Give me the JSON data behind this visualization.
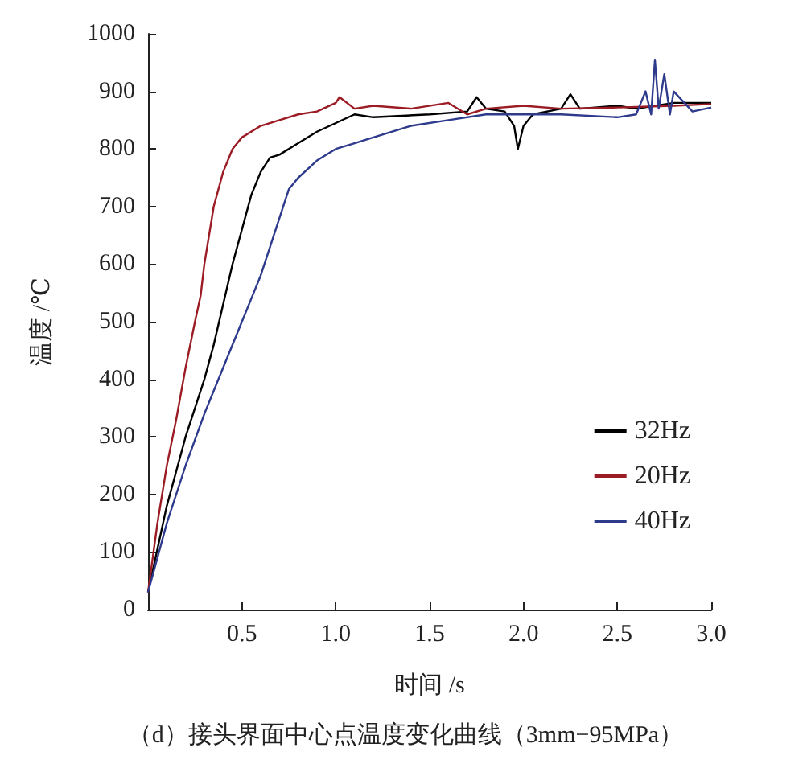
{
  "chart_data": {
    "type": "line",
    "xlabel": "时间 /s",
    "ylabel": "温度 /℃",
    "xlim": [
      0,
      3
    ],
    "xticks": [
      {
        "value": 0.5,
        "label": "0.5"
      },
      {
        "value": 1,
        "label": "1.0"
      },
      {
        "value": 1.5,
        "label": "1.5"
      },
      {
        "value": 2,
        "label": "2.0"
      },
      {
        "value": 2.5,
        "label": "2.5"
      },
      {
        "value": 3,
        "label": "3.0"
      }
    ],
    "ylim": [
      0,
      1000
    ],
    "yticks": [
      0,
      100,
      200,
      300,
      400,
      500,
      600,
      700,
      800,
      900,
      1000
    ],
    "grid": false,
    "legend": "right",
    "marker": "none",
    "line_style": "solid",
    "annotations": [
      "（d）接头界面中心点温度变化曲线（3mm−95MPa）"
    ],
    "series": [
      {
        "name": "32Hz",
        "color": "#000000",
        "x": [
          0,
          0.1,
          0.2,
          0.3,
          0.35,
          0.4,
          0.45,
          0.5,
          0.55,
          0.6,
          0.65,
          0.7,
          0.8,
          0.9,
          1.0,
          1.1,
          1.2,
          1.5,
          1.7,
          1.75,
          1.8,
          1.9,
          1.95,
          1.97,
          2.0,
          2.05,
          2.2,
          2.25,
          2.3,
          2.5,
          2.6,
          2.8,
          3.0
        ],
        "values": [
          30,
          180,
          300,
          400,
          460,
          530,
          600,
          660,
          720,
          760,
          785,
          790,
          810,
          830,
          845,
          860,
          855,
          860,
          865,
          890,
          870,
          865,
          840,
          800,
          840,
          860,
          870,
          895,
          870,
          875,
          870,
          880,
          880
        ]
      },
      {
        "name": "20Hz",
        "color": "#9b1c24",
        "x": [
          0,
          0.05,
          0.1,
          0.15,
          0.2,
          0.25,
          0.28,
          0.3,
          0.32,
          0.35,
          0.4,
          0.45,
          0.5,
          0.6,
          0.7,
          0.8,
          0.9,
          1.0,
          1.02,
          1.1,
          1.2,
          1.4,
          1.6,
          1.7,
          1.8,
          2.0,
          2.2,
          2.5,
          2.8,
          3.0
        ],
        "values": [
          30,
          150,
          250,
          330,
          420,
          500,
          545,
          600,
          640,
          700,
          760,
          800,
          820,
          840,
          850,
          860,
          865,
          880,
          890,
          870,
          875,
          870,
          880,
          860,
          870,
          875,
          870,
          872,
          875,
          878
        ]
      },
      {
        "name": "40Hz",
        "color": "#2e3a8c",
        "x": [
          0,
          0.1,
          0.2,
          0.3,
          0.4,
          0.5,
          0.55,
          0.6,
          0.65,
          0.7,
          0.75,
          0.8,
          0.9,
          1.0,
          1.1,
          1.2,
          1.4,
          1.6,
          1.8,
          2.0,
          2.2,
          2.5,
          2.6,
          2.65,
          2.68,
          2.7,
          2.72,
          2.75,
          2.78,
          2.8,
          2.9,
          3.0
        ],
        "values": [
          30,
          150,
          250,
          340,
          420,
          500,
          540,
          580,
          630,
          680,
          730,
          750,
          780,
          800,
          810,
          820,
          840,
          850,
          860,
          860,
          860,
          855,
          860,
          900,
          860,
          955,
          870,
          930,
          860,
          900,
          865,
          872
        ]
      }
    ]
  }
}
